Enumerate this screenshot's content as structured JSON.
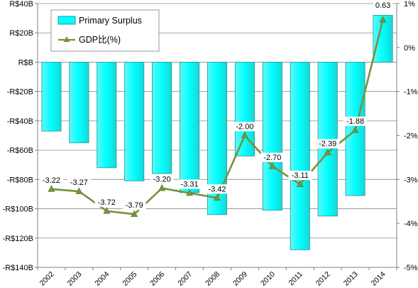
{
  "chart_data": {
    "type": "bar+line",
    "categories": [
      "2002",
      "2003",
      "2004",
      "2005",
      "2006",
      "2007",
      "2008",
      "2009",
      "2010",
      "2011",
      "2012",
      "2013",
      "2014"
    ],
    "series": [
      {
        "name": "Primary Surplus",
        "type": "bar",
        "axis": "left",
        "unit": "R$ billion",
        "values": [
          -47,
          -55,
          -72,
          -81,
          -76,
          -89,
          -104,
          -64,
          -101,
          -128,
          -105,
          -91,
          32
        ],
        "color": "#00ffff",
        "stroke": "#1a9a9a"
      },
      {
        "name": "GDP比(%)",
        "type": "line",
        "axis": "right",
        "unit": "%",
        "values": [
          -3.22,
          -3.27,
          -3.72,
          -3.79,
          -3.2,
          -3.31,
          -3.42,
          -2.0,
          -2.7,
          -3.11,
          -2.39,
          -1.88,
          0.63
        ],
        "labels": [
          "-3.22",
          "-3.27",
          "-3.72",
          "-3.79",
          "-3.20",
          "-3.31",
          "-3.42",
          "-2.00",
          "-2.70",
          "-3.11",
          "-2.39",
          "-1.88",
          "0.63"
        ],
        "color": "#77933c"
      }
    ],
    "y_left": {
      "min": -140,
      "max": 40,
      "step": 20,
      "tick_labels": [
        "-R$140B",
        "-R$120B",
        "-R$100B",
        "-R$80B",
        "-R$60B",
        "-R$40B",
        "-R$20B",
        "R$B",
        "R$20B",
        "R$40B"
      ]
    },
    "y_right": {
      "min": -5,
      "max": 1,
      "step": 1,
      "tick_labels": [
        "-5%",
        "-4%",
        "-3%",
        "-2%",
        "-1%",
        "0%",
        "1%"
      ]
    },
    "grid": true,
    "legend": "top-left"
  }
}
